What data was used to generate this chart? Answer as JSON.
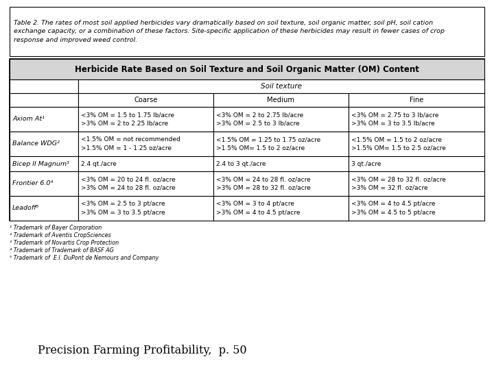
{
  "caption_lines": [
    "Table 2. The rates of most soil applied herbicides vary dramatically based on soil texture, soil organic matter, soil pH, soil cation",
    "exchange capacity, or a combination of these factors. Site-specific application of these herbicides may result in fewer cases of crop",
    "response and improved weed control."
  ],
  "table_title": "Herbicide Rate Based on Soil Texture and Soil Organic Matter (OM) Content",
  "col_header_1": "Soil texture",
  "col_sub_headers": [
    "Coarse",
    "Medium",
    "Fine"
  ],
  "row_headers": [
    "Axiom At¹",
    "Balance WDG²",
    "Bicep II Magnum³",
    "Frontier 6.0⁴",
    "Leadoff⁵"
  ],
  "cell_data": [
    [
      "<3% OM = 1.5 to 1.75 lb/acre\n>3% OM = 2 to 2.25 lb/acre",
      "<3% OM = 2 to 2.75 lb/acre\n>3% OM = 2.5 to 3 lb/acre",
      "<3% OM = 2.75 to 3 lb/acre\n>3% OM = 3 to 3.5 lb/acre"
    ],
    [
      "<1.5% OM = not recommended\n>1.5% OM = 1 - 1.25 oz/acre",
      "<1.5% OM = 1.25 to 1.75 oz/acre\n>1.5% OM= 1.5 to 2 oz/acre",
      "<1.5% OM = 1.5 to 2 oz/acre\n>1.5% OM= 1.5 to 2.5 oz/acre"
    ],
    [
      "2.4 qt./acre",
      "2.4 to 3 qt./acre",
      "3 qt./acre"
    ],
    [
      "<3% OM = 20 to 24 fl. oz/acre\n>3% OM = 24 to 28 fl. oz/acre",
      "<3% OM = 24 to 28 fl. oz/acre\n>3% OM = 28 to 32 fl. oz/acre",
      "<3% OM = 28 to 32 fl. oz/acre\n>3% OM = 32 fl. oz/acre"
    ],
    [
      "<3% OM = 2.5 to 3 pt/acre\n>3% OM = 3 to 3.5 pt/acre",
      "<3% OM = 3 to 4 pt/acre\n>3% OM = 4 to 4.5 pt/acre",
      "<3% OM = 4 to 4.5 pt/acre\n>3% OM = 4.5 to 5 pt/acre"
    ]
  ],
  "footnotes": [
    "¹ Trademark of Bayer Corporation",
    "² Trademark of Aventis CropSciences",
    "³ Trademark of Novartis Crop Protection",
    "⁴ Trademark of Trademark of BASF AG",
    "⁵ Trademark of  E.I. DuPont de Nemours and Company"
  ],
  "footer_text": "Precision Farming Profitability,  p. 50"
}
